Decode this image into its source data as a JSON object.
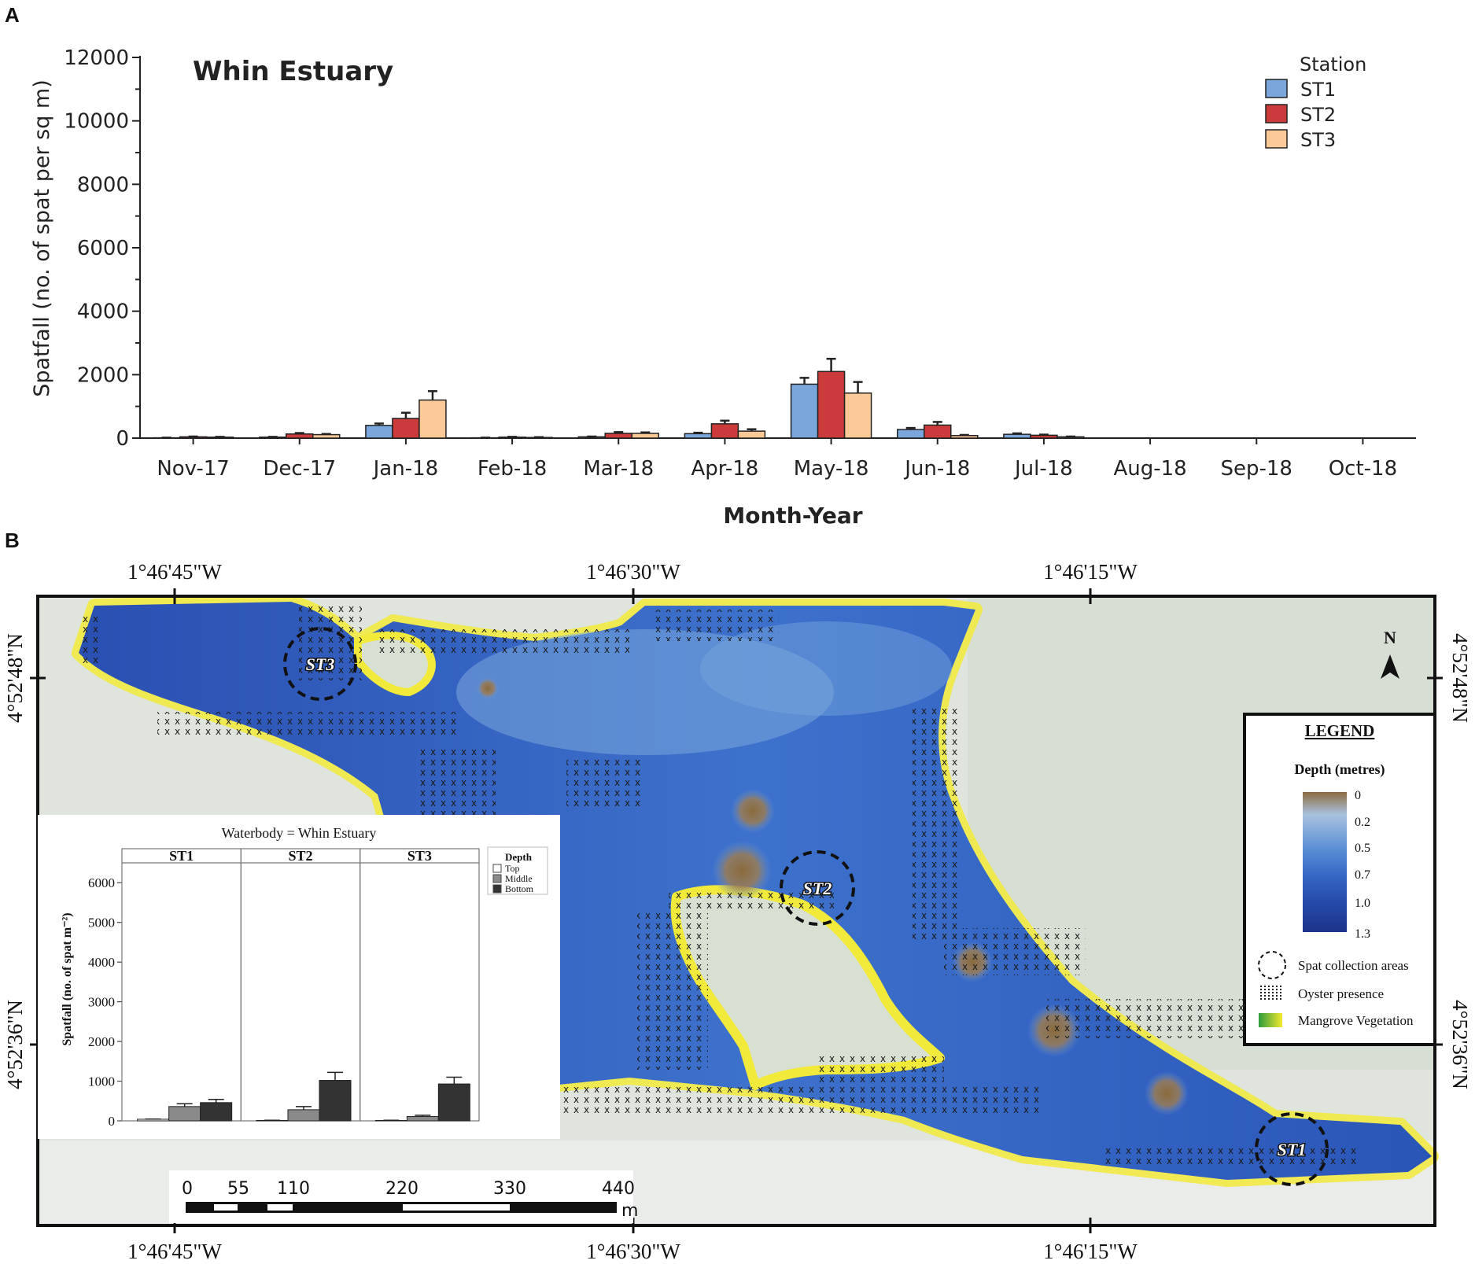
{
  "panel_a_letter": "A",
  "panel_b_letter": "B",
  "chart_data": [
    {
      "type": "bar",
      "title": "Whin Estuary",
      "xlabel": "Month-Year",
      "ylabel": "Spatfall (no. of spat per sq m)",
      "ylim": [
        0,
        12000
      ],
      "yticks": [
        0,
        2000,
        4000,
        6000,
        8000,
        10000,
        12000
      ],
      "categories": [
        "Nov-17",
        "Dec-17",
        "Jan-18",
        "Feb-18",
        "Mar-18",
        "Apr-18",
        "May-18",
        "Jun-18",
        "Jul-18",
        "Aug-18",
        "Sep-18",
        "Oct-18"
      ],
      "legend_title": "Station",
      "legend_position": "top-right",
      "series": [
        {
          "name": "ST1",
          "color": "#7aa6dc",
          "values": [
            10,
            30,
            400,
            10,
            40,
            140,
            1700,
            270,
            120,
            0,
            0,
            0
          ],
          "errors": [
            5,
            10,
            60,
            5,
            10,
            30,
            200,
            50,
            30,
            0,
            0,
            0
          ]
        },
        {
          "name": "ST2",
          "color": "#cc3b3b",
          "values": [
            40,
            130,
            620,
            30,
            150,
            450,
            2100,
            410,
            90,
            0,
            0,
            0
          ],
          "errors": [
            10,
            30,
            180,
            10,
            40,
            100,
            400,
            100,
            20,
            0,
            0,
            0
          ]
        },
        {
          "name": "ST3",
          "color": "#fbc898",
          "values": [
            30,
            110,
            1200,
            20,
            150,
            220,
            1420,
            80,
            40,
            0,
            0,
            0
          ],
          "errors": [
            10,
            20,
            280,
            10,
            30,
            60,
            350,
            20,
            10,
            0,
            0,
            0
          ]
        }
      ]
    },
    {
      "type": "bar",
      "title": "Waterbody = Whin Estuary",
      "ylabel": "Spatfall (no. of spat m⁻²)",
      "ylim": [
        0,
        6500
      ],
      "yticks": [
        0,
        1000,
        2000,
        3000,
        4000,
        5000,
        6000
      ],
      "facets": [
        "ST1",
        "ST2",
        "ST3"
      ],
      "legend_title": "Depth",
      "legend_position": "top-right",
      "series": [
        {
          "name": "Top",
          "color": "#ffffff",
          "values": [
            40,
            10,
            10
          ],
          "errors": [
            5,
            5,
            5
          ]
        },
        {
          "name": "Middle",
          "color": "#8a8a8a",
          "values": [
            360,
            280,
            110
          ],
          "errors": [
            70,
            80,
            30
          ]
        },
        {
          "name": "Bottom",
          "color": "#333333",
          "values": [
            460,
            1020,
            930
          ],
          "errors": [
            80,
            200,
            170
          ]
        }
      ]
    }
  ],
  "map": {
    "coords_top": [
      "1°46'45\"W",
      "1°46'30\"W",
      "1°46'15\"W"
    ],
    "coords_bottom": [
      "1°46'45\"W",
      "1°46'30\"W",
      "1°46'15\"W"
    ],
    "coords_left": [
      "4°52'48\"N",
      "4°52'36\"N"
    ],
    "coords_right": [
      "4°52'48\"N",
      "4°52'36\"N"
    ],
    "north_label": "N",
    "stations": [
      "ST3",
      "ST2",
      "ST1"
    ],
    "scale_ticks": [
      "0",
      "55",
      "110",
      "220",
      "330",
      "440"
    ],
    "scale_unit": "m",
    "legend": {
      "title": "LEGEND",
      "depth_title": "Depth (metres)",
      "depth_ticks": [
        "0",
        "0.2",
        "0.5",
        "0.7",
        "1.0",
        "1.3"
      ],
      "items": [
        "Spat collection areas",
        "Oyster presence",
        "Mangrove Vegetation"
      ]
    },
    "colors": {
      "water_deep": "#1f43a8",
      "water_shallow": "#6fa1dc",
      "shoal": "#8a6a3c",
      "mangrove_fringe": "#f2ea3a",
      "land": "#dfe4dc"
    }
  }
}
